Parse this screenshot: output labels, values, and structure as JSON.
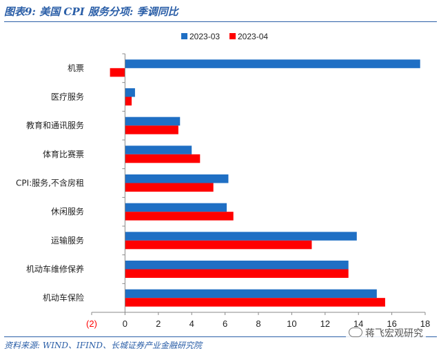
{
  "header": {
    "title": "图表9:  美国 CPI 服务分项:  季调同比"
  },
  "footer": {
    "source": "资料来源:  WIND、IFIND、长城证券产业金融研究院"
  },
  "watermark": {
    "text": "蒋飞宏观研究"
  },
  "colors": {
    "series_1": "#1f6fc4",
    "series_2": "#ff0000",
    "title": "#2a5ea7"
  },
  "chart_data": {
    "type": "bar",
    "orientation": "horizontal",
    "categories": [
      "机票",
      "医疗服务",
      "教育和通讯服务",
      "体育比赛票",
      "CPI:服务,不含房租",
      "休闲服务",
      "运输服务",
      "机动车维修保养",
      "机动车保险"
    ],
    "series": [
      {
        "name": "2023-03",
        "values": [
          17.7,
          0.6,
          3.3,
          4.0,
          6.2,
          6.1,
          13.9,
          13.4,
          15.1
        ]
      },
      {
        "name": "2023-04",
        "values": [
          -0.9,
          0.4,
          3.2,
          4.5,
          5.3,
          6.5,
          11.2,
          13.4,
          15.6
        ]
      }
    ],
    "xlim": [
      -2,
      18
    ],
    "xticks": [
      -2,
      0,
      2,
      4,
      6,
      8,
      10,
      12,
      14,
      16,
      18
    ],
    "xtick_labels": [
      "(2)",
      "0",
      "2",
      "4",
      "6",
      "8",
      "10",
      "12",
      "14",
      "16",
      "18"
    ],
    "legend_position": "top-center",
    "grid": false
  }
}
